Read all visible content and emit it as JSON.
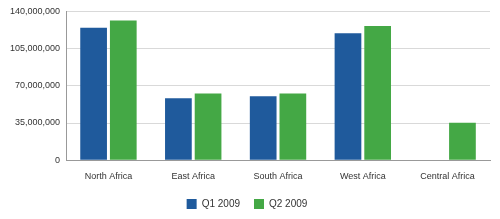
{
  "chart_data": {
    "type": "bar",
    "categories": [
      "North Africa",
      "East Africa",
      "South Africa",
      "West Africa",
      "Central Africa"
    ],
    "series": [
      {
        "name": "Q1 2009",
        "color": "#1f5a9c",
        "values": [
          124500000,
          58400000,
          60100000,
          119400000,
          null
        ]
      },
      {
        "name": "Q2 2009",
        "color": "#44a845",
        "values": [
          131400000,
          62700000,
          62700000,
          126300000,
          35200000
        ]
      }
    ],
    "ylim": [
      0,
      140000000
    ],
    "yticks": [
      0,
      {
        "value": 35000000,
        "label": "35,000,000"
      },
      {
        "value": 70000000,
        "label": "70,000,000"
      },
      {
        "value": 105000000,
        "label": "105,000,000"
      },
      {
        "value": 140000000,
        "label": "140,000,000"
      }
    ],
    "grid": true,
    "legend": "bottom"
  }
}
